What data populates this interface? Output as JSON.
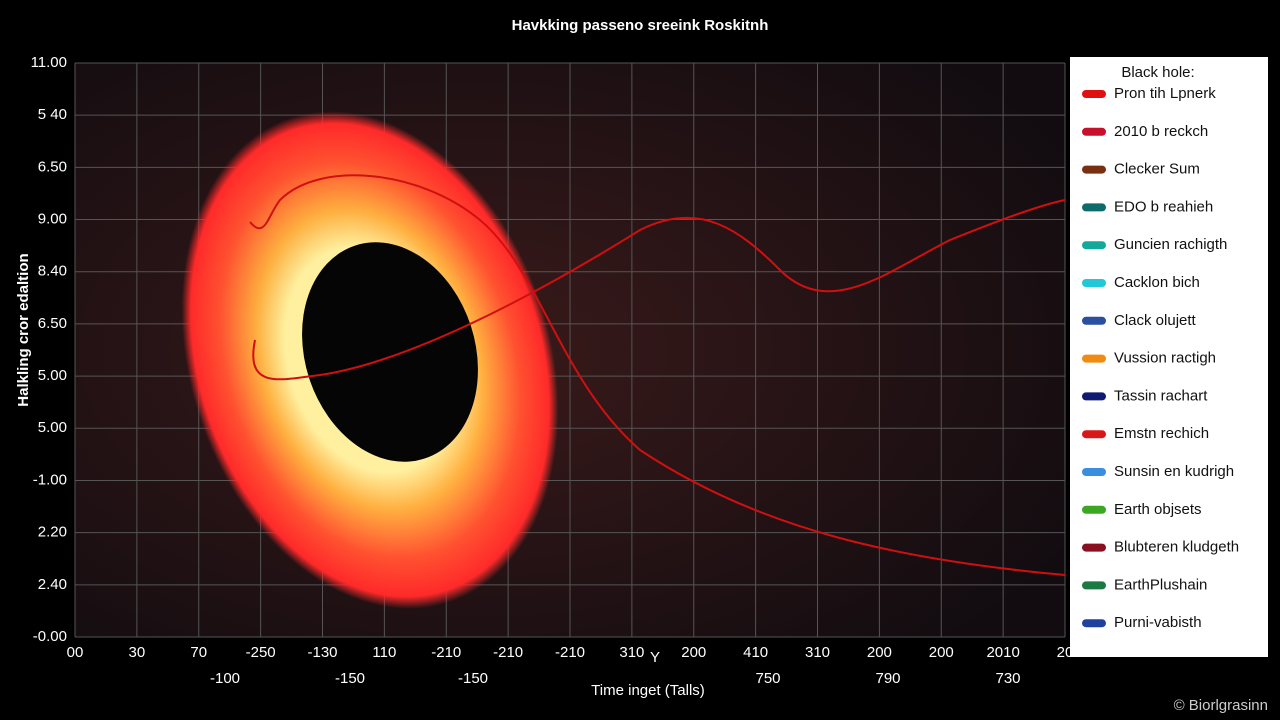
{
  "header": {
    "title": "Havkking passeno sreeink Roskitnh"
  },
  "y_axis": {
    "label": "Halkling cror edaltion",
    "tick_labels": [
      "11.00",
      "5 40",
      "6.50",
      "9.00",
      "8.40",
      "6.50",
      "5.00",
      "5.00",
      "-1.00",
      "2.20",
      "2.40",
      "-0.00"
    ]
  },
  "x_axis": {
    "label": "Time inget (Talls)",
    "tick_labels_top": [
      "00",
      "30",
      "70",
      "-250",
      "-130",
      "110",
      "-210",
      "-210",
      "-210",
      "310",
      "200",
      "410",
      "310",
      "200",
      "200",
      "2010",
      "20"
    ],
    "tick_labels_bottom": [
      "-100",
      "-150",
      "-150",
      "750",
      "790",
      "730"
    ],
    "marker": "Y"
  },
  "legend": {
    "title": "Black hole:",
    "items": [
      {
        "label": "Pron tih Lpnerk",
        "color": "#e01010"
      },
      {
        "label": "2010 b reckch",
        "color": "#c8102e"
      },
      {
        "label": "Clecker Sum",
        "color": "#7a2e12"
      },
      {
        "label": "EDO b reahieh",
        "color": "#0f6b6b"
      },
      {
        "label": "Guncien rachigth",
        "color": "#12a89a"
      },
      {
        "label": "Cacklon bich",
        "color": "#20c8d8"
      },
      {
        "label": "Clack olujett",
        "color": "#2a4fa0"
      },
      {
        "label": "Vussion ractigh",
        "color": "#f08a10"
      },
      {
        "label": "Tassin rachart",
        "color": "#101a6e"
      },
      {
        "label": "Emstn rechich",
        "color": "#d81818"
      },
      {
        "label": "Sunsin en kudrigh",
        "color": "#3a8ee0"
      },
      {
        "label": "Earth objsets",
        "color": "#3aa820"
      },
      {
        "label": "Blubteren kludgeth",
        "color": "#8a1020"
      },
      {
        "label": "EarthPlushain",
        "color": "#1a7a40"
      },
      {
        "label": "Purni-vabisth",
        "color": "#2040a0"
      }
    ]
  },
  "watermark": "© Biorlgrasinn"
}
